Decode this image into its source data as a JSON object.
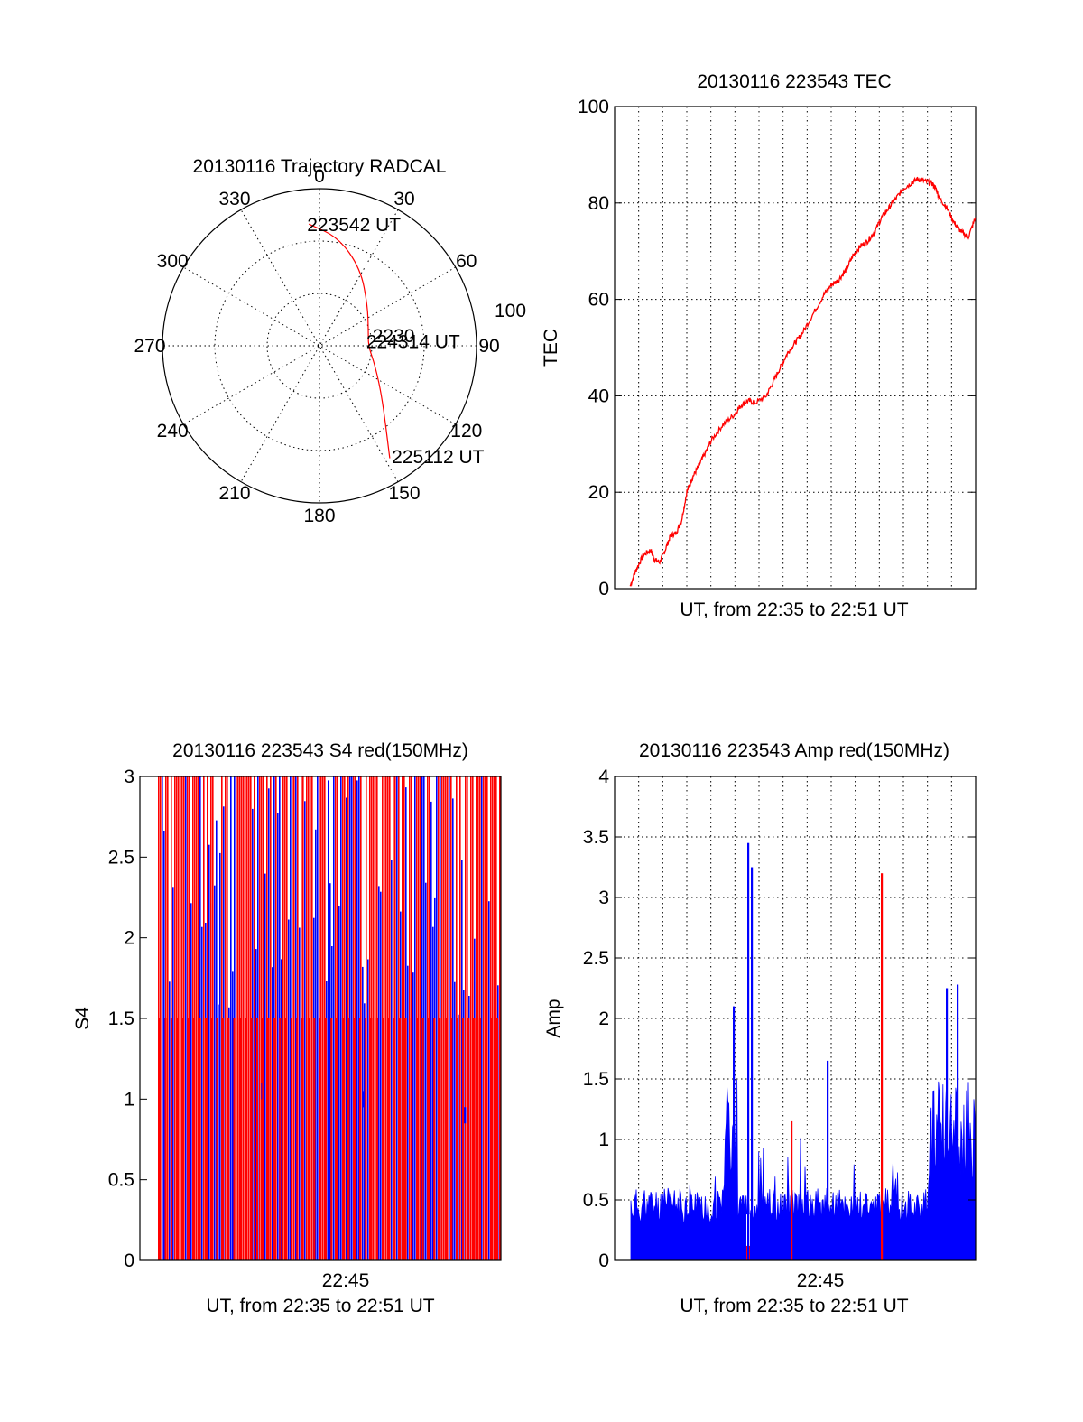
{
  "colors": {
    "red": "#ff0000",
    "blue": "#0000ff",
    "axis": "#000000"
  },
  "chart_data": [
    {
      "type": "polar",
      "title": "20130116 Trajectory RADCAL",
      "azimuth_labels": [
        "0",
        "30",
        "60",
        "90",
        "120",
        "150",
        "180",
        "210",
        "240",
        "270",
        "300",
        "330"
      ],
      "radius_label": "100",
      "elevation_rings": [
        30,
        60
      ],
      "grid": true,
      "series": [
        {
          "color": "red",
          "points": [
            {
              "az": 355,
              "el": 20
            },
            {
              "az": 10,
              "el": 27
            },
            {
              "az": 28,
              "el": 40
            },
            {
              "az": 50,
              "el": 54
            },
            {
              "az": 75,
              "el": 61
            },
            {
              "az": 90,
              "el": 62
            },
            {
              "az": 110,
              "el": 56
            },
            {
              "az": 130,
              "el": 43
            },
            {
              "az": 148,
              "el": 14
            }
          ]
        }
      ],
      "annotations": [
        {
          "text": "223542 UT",
          "az": 355,
          "el": 20
        },
        {
          "text": "224314 UT",
          "az": 84,
          "el": 62
        },
        {
          "text": "2230",
          "az": 79,
          "el": 58
        },
        {
          "text": "225112 UT",
          "az": 146,
          "el": 14
        }
      ]
    },
    {
      "type": "line",
      "title": "20130116 223543 TEC",
      "xlabel": "UT, from 22:35 to 22:51 UT",
      "ylabel": "TEC",
      "xlim": [
        0,
        1
      ],
      "ylim": [
        0,
        100
      ],
      "yticks": [
        0,
        20,
        40,
        60,
        80,
        100
      ],
      "grid": true,
      "series": [
        {
          "color": "red",
          "x": [
            0.043,
            0.06,
            0.08,
            0.1,
            0.11,
            0.125,
            0.14,
            0.155,
            0.17,
            0.185,
            0.2,
            0.215,
            0.23,
            0.25,
            0.27,
            0.3,
            0.33,
            0.35,
            0.37,
            0.39,
            0.42,
            0.44,
            0.46,
            0.48,
            0.5,
            0.52,
            0.55,
            0.58,
            0.6,
            0.62,
            0.64,
            0.66,
            0.68,
            0.7,
            0.72,
            0.74,
            0.76,
            0.78,
            0.8,
            0.82,
            0.84,
            0.86,
            0.88,
            0.89,
            0.9,
            0.92,
            0.94,
            0.96,
            0.98,
            1.0
          ],
          "y": [
            0.5,
            4,
            7,
            8,
            6,
            5.5,
            8,
            11,
            11.5,
            14,
            20,
            23,
            25,
            28,
            31,
            34,
            36,
            38,
            39,
            38.5,
            40,
            43,
            46,
            49,
            51,
            53,
            57,
            61,
            63,
            64,
            66,
            69,
            71,
            72,
            74,
            77,
            79,
            81,
            83,
            84,
            85,
            84.5,
            84,
            83,
            81,
            79,
            76,
            74,
            73,
            77
          ]
        }
      ]
    },
    {
      "type": "bar",
      "title": "20130116 223543 S4 red(150MHz)",
      "xlabel": "UT, from 22:35 to 22:51 UT",
      "ylabel": "S4",
      "xticks": [
        {
          "x": 0.57,
          "label": "22:45"
        }
      ],
      "xlim": [
        0,
        1
      ],
      "ylim": [
        0,
        3
      ],
      "yticks": [
        0,
        0.5,
        1,
        1.5,
        2,
        2.5,
        3
      ],
      "grid": false,
      "series": [
        {
          "name": "",
          "color": "red",
          "values": "dense red bars spanning x 0.0–1.0, mostly reaching 3"
        },
        {
          "name": "",
          "color": "blue",
          "values": "dense blue bars, heights 0.3–3, cluster near 1.0 at x≈0.9"
        }
      ],
      "spikes": [
        {
          "x": 0.34,
          "y": 1.1,
          "color": "blue"
        },
        {
          "x": 0.37,
          "y": 0.35,
          "color": "blue"
        },
        {
          "x": 0.62,
          "y": 1.05,
          "color": "blue"
        },
        {
          "x": 0.9,
          "y": 0.95,
          "color": "blue"
        }
      ]
    },
    {
      "type": "bar",
      "title": "20130116 223543 Amp red(150MHz)",
      "xlabel": "UT, from 22:35 to 22:51 UT",
      "ylabel": "Amp",
      "xticks": [
        {
          "x": 0.57,
          "label": "22:45"
        }
      ],
      "xlim": [
        0,
        1
      ],
      "ylim": [
        0,
        4
      ],
      "yticks": [
        0,
        0.5,
        1,
        1.5,
        2,
        2.5,
        3,
        3.5,
        4
      ],
      "grid": true,
      "peaks": [
        {
          "x": 0.33,
          "y": 2.1,
          "color": "blue"
        },
        {
          "x": 0.37,
          "y": 3.45,
          "color": "blue"
        },
        {
          "x": 0.38,
          "y": 3.25,
          "color": "blue"
        },
        {
          "x": 0.49,
          "y": 1.15,
          "color": "red"
        },
        {
          "x": 0.59,
          "y": 1.65,
          "color": "blue"
        },
        {
          "x": 0.74,
          "y": 3.2,
          "color": "red"
        },
        {
          "x": 0.92,
          "y": 2.25,
          "color": "blue"
        },
        {
          "x": 0.95,
          "y": 2.28,
          "color": "blue"
        }
      ]
    }
  ]
}
